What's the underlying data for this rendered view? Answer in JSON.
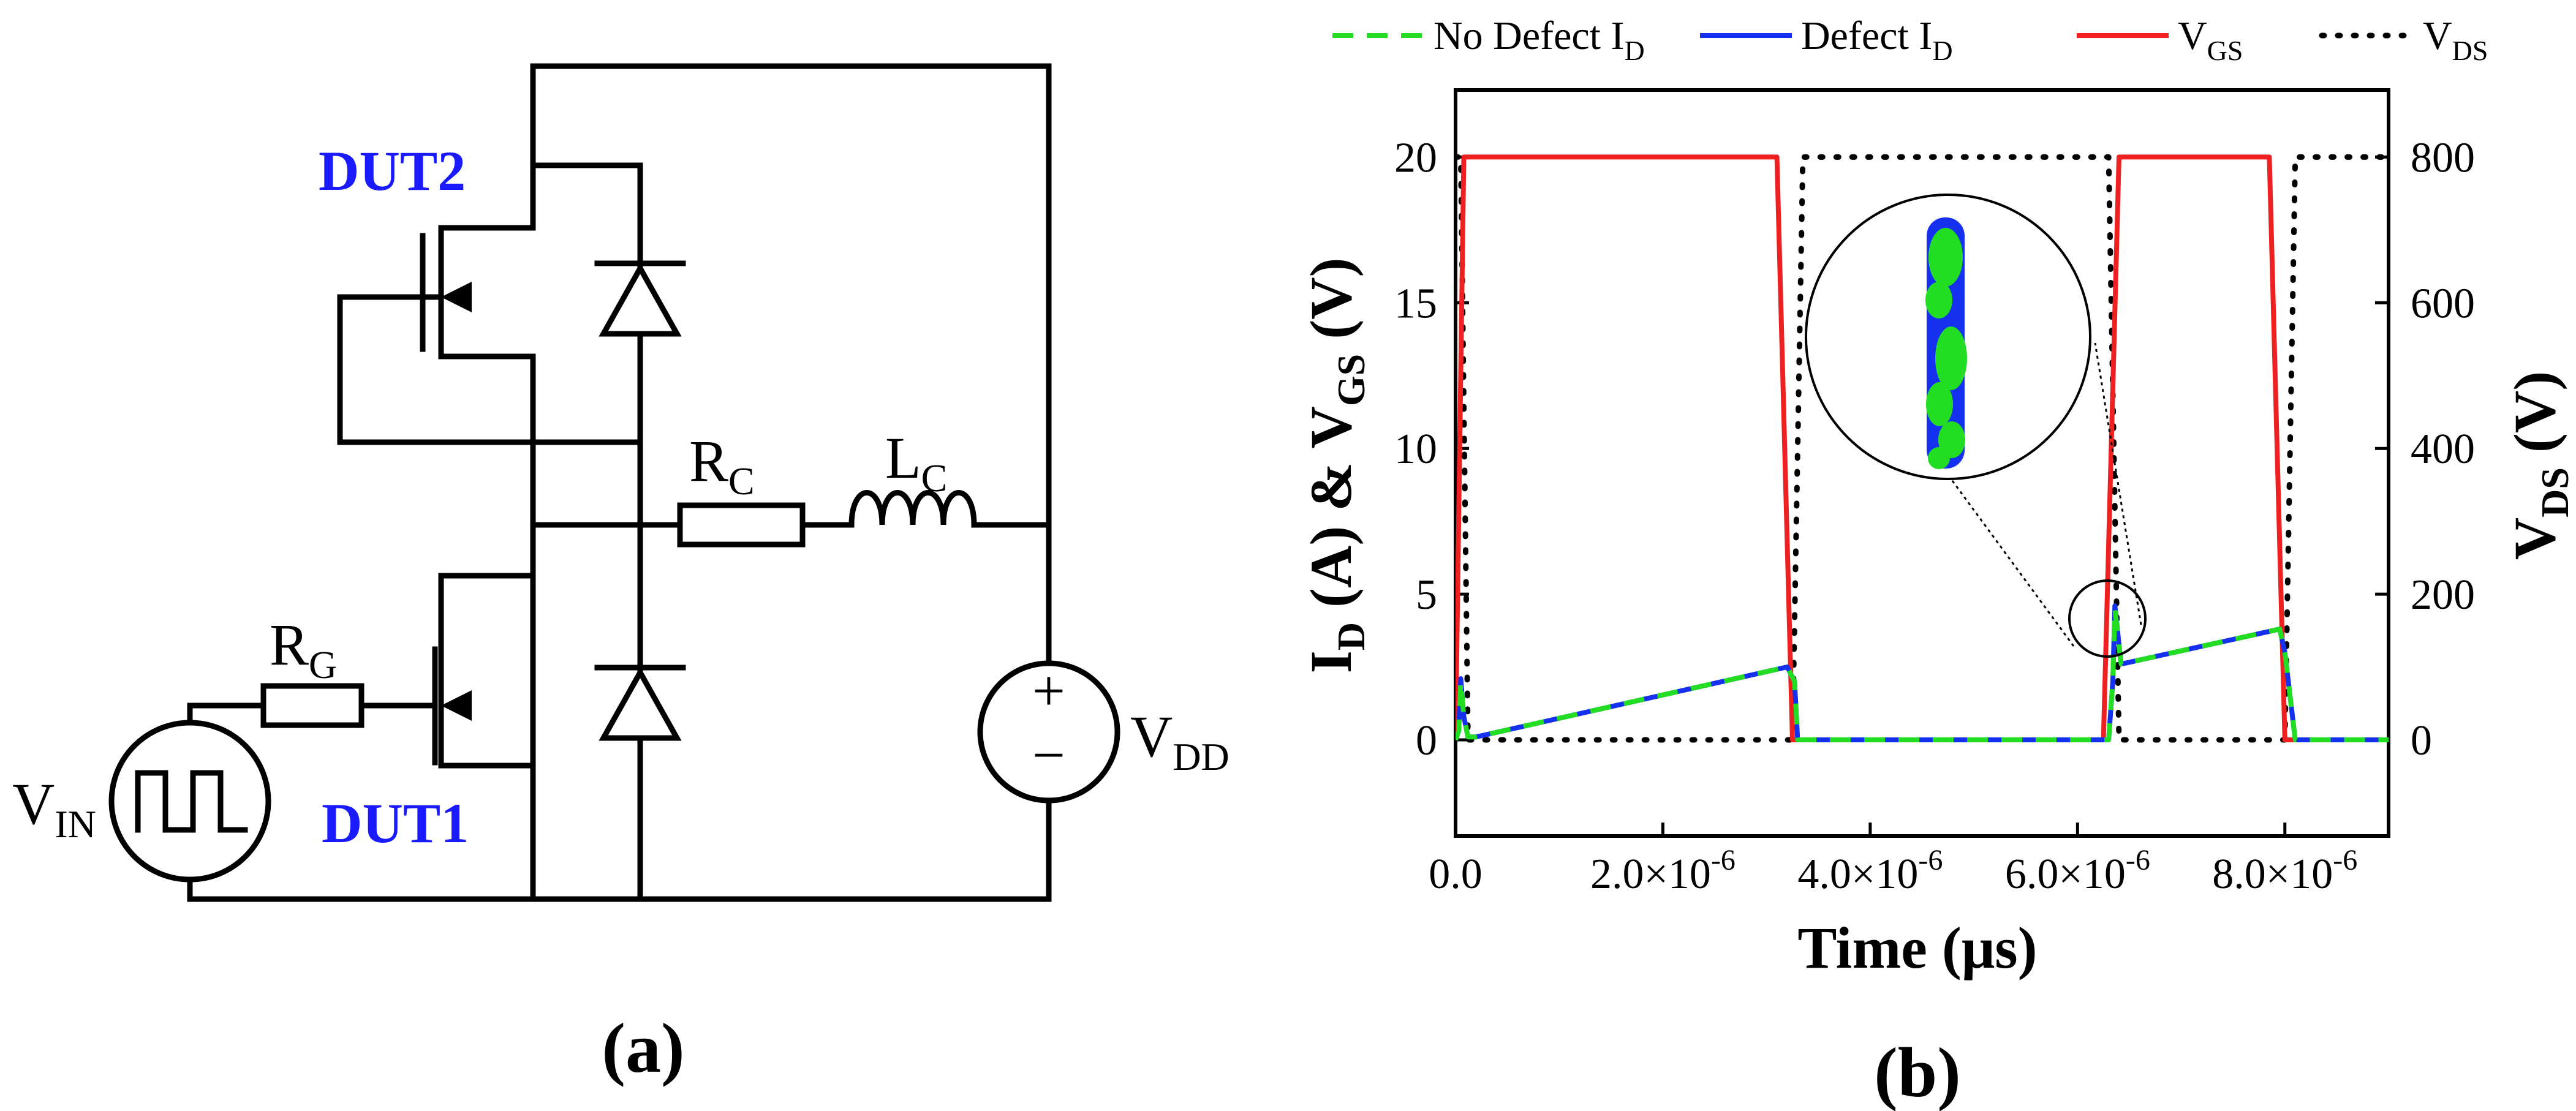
{
  "panel_a": {
    "caption": "(a)",
    "labels": {
      "dut2": "DUT2",
      "dut1": "DUT1",
      "rc_main": "R",
      "rc_sub": "C",
      "lc_main": "L",
      "lc_sub": "C",
      "rg_main": "R",
      "rg_sub": "G",
      "vin_main": "V",
      "vin_sub": "IN",
      "vdd_main": "V",
      "vdd_sub": "DD",
      "plus": "+",
      "minus": "−"
    }
  },
  "panel_b": {
    "caption": "(b)"
  },
  "chart_data": {
    "type": "line",
    "xlabel": "Time (μs)",
    "ylabel_left": {
      "p1": "I",
      "s1": "D",
      "p2": " (A) & V",
      "s2": "GS",
      "p3": " (V)"
    },
    "ylabel_right": {
      "p1": "V",
      "s1": "DS",
      "p2": " (V)"
    },
    "xlim": [
      0,
      9e-06
    ],
    "ylim_left": [
      -3.3,
      22.3
    ],
    "ylim_right": [
      -132,
      892
    ],
    "x_ticks": [
      {
        "value": 0,
        "label": "0.0"
      },
      {
        "value": 2e-06,
        "label": "2.0×10",
        "exp": "-6"
      },
      {
        "value": 4e-06,
        "label": "4.0×10",
        "exp": "-6"
      },
      {
        "value": 6e-06,
        "label": "6.0×10",
        "exp": "-6"
      },
      {
        "value": 8e-06,
        "label": "8.0×10",
        "exp": "-6"
      }
    ],
    "y_ticks_left": [
      {
        "value": 0,
        "label": "0"
      },
      {
        "value": 5,
        "label": "5"
      },
      {
        "value": 10,
        "label": "10"
      },
      {
        "value": 15,
        "label": "15"
      },
      {
        "value": 20,
        "label": "20"
      }
    ],
    "y_ticks_right": [
      {
        "value": 0,
        "label": "0"
      },
      {
        "value": 200,
        "label": "200"
      },
      {
        "value": 400,
        "label": "400"
      },
      {
        "value": 600,
        "label": "600"
      },
      {
        "value": 800,
        "label": "800"
      }
    ],
    "legend_position": "top, outside plot",
    "series": [
      {
        "name": "No Defect I",
        "name_sub": "D",
        "axis": "left",
        "color": "#22dd22",
        "style": "dashed",
        "x": [
          0,
          3e-08,
          5e-08,
          8e-08,
          1.2e-07,
          2e-07,
          3.2e-06,
          3.27e-06,
          3.3e-06,
          6.3e-06,
          6.34e-06,
          6.36e-06,
          6.42e-06,
          7.95e-06,
          8e-06,
          8.1e-06,
          9e-06
        ],
        "y": [
          0,
          0.3,
          2.0,
          0.8,
          0.1,
          0.1,
          2.5,
          2.0,
          0,
          0,
          2.0,
          4.5,
          2.6,
          3.8,
          3.0,
          0,
          0
        ]
      },
      {
        "name": "Defect I",
        "name_sub": "D",
        "axis": "left",
        "color": "#1530ee",
        "style": "solid",
        "x": [
          0,
          3e-08,
          5e-08,
          8e-08,
          1.2e-07,
          2e-07,
          3.2e-06,
          3.27e-06,
          3.3e-06,
          6.3e-06,
          6.34e-06,
          6.36e-06,
          6.42e-06,
          7.95e-06,
          8e-06,
          8.1e-06,
          9e-06
        ],
        "y": [
          0,
          0.3,
          2.1,
          0.8,
          0.1,
          0.1,
          2.5,
          2.0,
          0,
          0,
          2.0,
          4.6,
          2.6,
          3.8,
          3.0,
          0,
          0
        ]
      },
      {
        "name": "V",
        "name_sub": "GS",
        "axis": "left",
        "color": "#ee2020",
        "style": "solid",
        "x": [
          0,
          8e-08,
          3.1e-06,
          3.25e-06,
          6.25e-06,
          6.4e-06,
          7.85e-06,
          8e-06,
          9e-06
        ],
        "y": [
          0,
          20,
          20,
          0,
          0,
          20,
          20,
          0,
          0
        ]
      },
      {
        "name": "V",
        "name_sub": "DS",
        "axis": "right",
        "color": "#000000",
        "style": "dotted",
        "x": [
          0,
          5e-08,
          1.2e-07,
          3.25e-06,
          3.35e-06,
          6.3e-06,
          6.4e-06,
          8e-06,
          8.1e-06,
          9e-06
        ],
        "y": [
          800,
          800,
          0,
          0,
          800,
          800,
          0,
          0,
          800,
          800
        ]
      }
    ],
    "inset": {
      "shows": "zoom of turn-on current peak near t = 6.35e-6 s"
    }
  }
}
